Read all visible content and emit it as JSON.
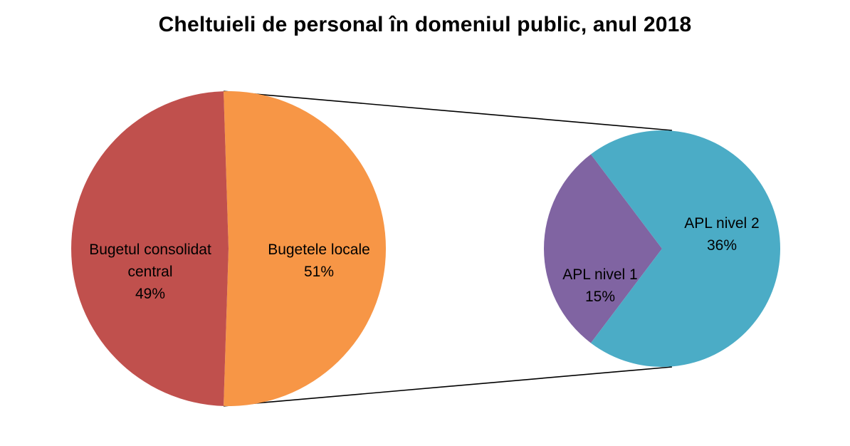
{
  "chart_data": {
    "type": "pie",
    "subtype": "pie-of-pie",
    "title": "Cheltuieli de personal în domeniul public, anul 2018",
    "main_pie": {
      "slices": [
        {
          "label_lines": [
            "Bugetul consolidat",
            "central"
          ],
          "value": 49,
          "value_label": "49%",
          "color": "#C0504D"
        },
        {
          "label_lines": [
            "Bugetele locale"
          ],
          "value": 51,
          "value_label": "51%",
          "color": "#F79646"
        }
      ]
    },
    "secondary_pie": {
      "breakout_of": "Bugetele locale",
      "slices": [
        {
          "label_lines": [
            "APL nivel 2"
          ],
          "value": 36,
          "value_label": "36%",
          "color": "#4BACC6"
        },
        {
          "label_lines": [
            "APL nivel 1"
          ],
          "value": 15,
          "value_label": "15%",
          "color": "#8064A2"
        }
      ]
    },
    "connector_color": "#000000",
    "legend": "none",
    "grid": false
  }
}
